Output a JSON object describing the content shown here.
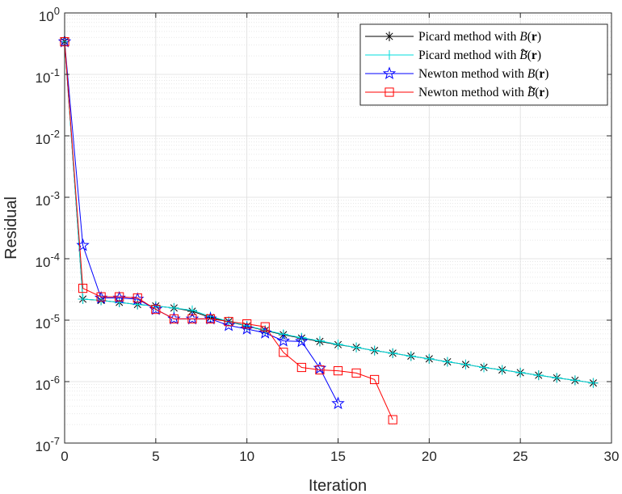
{
  "chart_data": {
    "type": "line",
    "xlabel": "Iteration",
    "ylabel": "Residual",
    "xlim": [
      0,
      30
    ],
    "ylim": [
      1e-07,
      1
    ],
    "yscale": "log",
    "grid": true,
    "legend_location": "top-right",
    "x_ticks": [
      "0",
      "5",
      "10",
      "15",
      "20",
      "25",
      "30"
    ],
    "y_tick_bases": [
      "10",
      "10",
      "10",
      "10",
      "10",
      "10",
      "10",
      "10"
    ],
    "y_tick_exponents": [
      "-7",
      "-6",
      "-5",
      "-4",
      "-3",
      "-2",
      "-1",
      "0"
    ],
    "series": [
      {
        "name": "Picard method with B(r)",
        "legend_prefix": "Picard method with ",
        "legend_math": "B",
        "legend_tilde": false,
        "color": "#000000",
        "marker": "asterisk",
        "x": [
          0,
          1,
          2,
          3,
          4,
          5,
          6,
          7,
          8,
          9,
          10,
          11,
          12,
          13,
          14,
          15,
          16,
          17,
          18,
          19,
          20,
          21,
          22,
          23,
          24,
          25,
          26,
          27,
          28,
          29
        ],
        "values": [
          0.34,
          2.2e-05,
          2.1e-05,
          1.95e-05,
          1.8e-05,
          1.7e-05,
          1.58e-05,
          1.4e-05,
          1.1e-05,
          9.5e-06,
          8e-06,
          6.8e-06,
          5.8e-06,
          5.1e-06,
          4.5e-06,
          4e-06,
          3.6e-06,
          3.2e-06,
          2.9e-06,
          2.6e-06,
          2.35e-06,
          2.1e-06,
          1.9e-06,
          1.7e-06,
          1.55e-06,
          1.4e-06,
          1.27e-06,
          1.15e-06,
          1.05e-06,
          9.5e-07
        ]
      },
      {
        "name": "Picard method with B~(r)",
        "legend_prefix": "Picard method with ",
        "legend_math": "B",
        "legend_tilde": true,
        "color": "#00dede",
        "marker": "plus",
        "x": [
          0,
          1,
          2,
          3,
          4,
          5,
          6,
          7,
          8,
          9,
          10,
          11,
          12,
          13,
          14,
          15,
          16,
          17,
          18,
          19,
          20,
          21,
          22,
          23,
          24,
          25,
          26,
          27,
          28,
          29
        ],
        "values": [
          0.34,
          2.2e-05,
          2.1e-05,
          1.95e-05,
          1.8e-05,
          1.7e-05,
          1.58e-05,
          1.45e-05,
          1.15e-05,
          9.6e-06,
          8.1e-06,
          6.9e-06,
          5.9e-06,
          5.2e-06,
          4.6e-06,
          4.05e-06,
          3.6e-06,
          3.2e-06,
          2.9e-06,
          2.6e-06,
          2.35e-06,
          2.1e-06,
          1.9e-06,
          1.7e-06,
          1.55e-06,
          1.4e-06,
          1.27e-06,
          1.15e-06,
          1.05e-06,
          9.5e-07
        ]
      },
      {
        "name": "Newton method with B(r)",
        "legend_prefix": "Newton method with ",
        "legend_math": "B",
        "legend_tilde": false,
        "color": "#0000ff",
        "marker": "star",
        "x": [
          0,
          1,
          2,
          3,
          4,
          5,
          6,
          7,
          8,
          9,
          10,
          11,
          12,
          13,
          14,
          15
        ],
        "values": [
          0.34,
          0.000165,
          2.3e-05,
          2.3e-05,
          2.2e-05,
          1.5e-05,
          1.05e-05,
          1.05e-05,
          1.05e-05,
          8.2e-06,
          7.2e-06,
          6.2e-06,
          4.6e-06,
          4.5e-06,
          1.65e-06,
          4.4e-07
        ]
      },
      {
        "name": "Newton method with B~(r)",
        "legend_prefix": "Newton method with ",
        "legend_math": "B",
        "legend_tilde": true,
        "color": "#ff0000",
        "marker": "square",
        "x": [
          0,
          1,
          2,
          3,
          4,
          5,
          6,
          7,
          8,
          9,
          10,
          11,
          12,
          13,
          14,
          15,
          16,
          17,
          18
        ],
        "values": [
          0.34,
          3.3e-05,
          2.4e-05,
          2.4e-05,
          2.3e-05,
          1.5e-05,
          1.05e-05,
          1.05e-05,
          1.05e-05,
          9.5e-06,
          8.7e-06,
          7.8e-06,
          3e-06,
          1.7e-06,
          1.55e-06,
          1.5e-06,
          1.38e-06,
          1.08e-06,
          2.4e-07
        ]
      }
    ]
  }
}
